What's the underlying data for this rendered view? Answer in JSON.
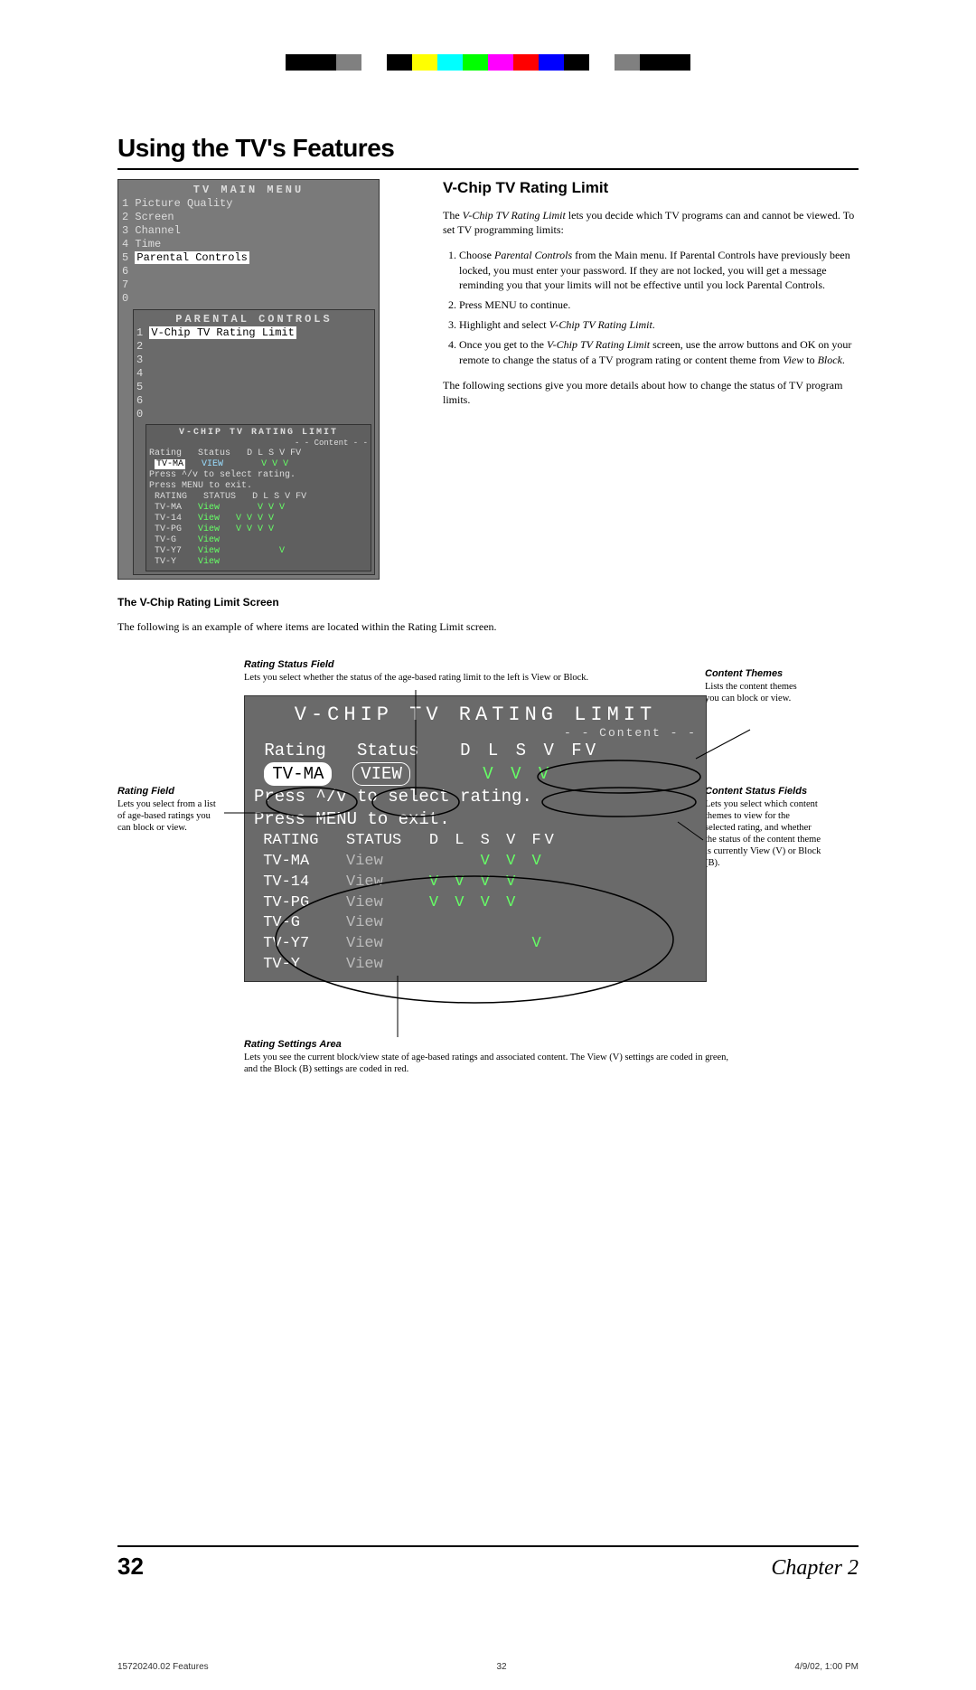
{
  "crop_marks": {
    "colors": [
      "#000000",
      "#000000",
      "#808080",
      "#ffffff",
      "#000000",
      "#ffff00",
      "#00ffff",
      "#00ff00",
      "#ff00ff",
      "#ff0000",
      "#0000ff",
      "#000000",
      "#ffffff",
      "#808080",
      "#000000",
      "#000000"
    ]
  },
  "chapter_title": "Using the TV's Features",
  "section_title": "V-Chip TV Rating Limit",
  "intro_para": "The V-Chip TV Rating Limit lets you decide which TV programs can and cannot be viewed. To set TV programming limits:",
  "steps": [
    "Choose Parental Controls from the Main menu. If Parental Controls have previously been locked, you must enter your password. If they are not locked, you will get a message reminding you that your limits will not be effective until you lock Parental Controls.",
    "Press MENU to continue.",
    "Highlight and select V-Chip TV Rating Limit.",
    "Once you get to the V-Chip TV Rating Limit screen, use the arrow buttons and OK on your remote to change the status of a TV program rating or content theme from View to Block."
  ],
  "tail_para": "The following sections give you more details about how to change the status of TV program limits.",
  "tv_main_menu": {
    "title": "TV MAIN MENU",
    "items": [
      {
        "n": "1",
        "label": "Picture Quality"
      },
      {
        "n": "2",
        "label": "Screen"
      },
      {
        "n": "3",
        "label": "Channel"
      },
      {
        "n": "4",
        "label": "Time"
      },
      {
        "n": "5",
        "label": "Parental Controls",
        "hl": true
      },
      {
        "n": "6",
        "label": ""
      },
      {
        "n": "7",
        "label": ""
      },
      {
        "n": "0",
        "label": ""
      }
    ]
  },
  "parental_controls": {
    "title": "PARENTAL CONTROLS",
    "rows": [
      {
        "n": "1",
        "label": "V-Chip TV Rating Limit",
        "hl": true
      },
      {
        "n": "2",
        "label": ""
      },
      {
        "n": "3",
        "label": ""
      },
      {
        "n": "4",
        "label": ""
      },
      {
        "n": "5",
        "label": ""
      },
      {
        "n": "6",
        "label": ""
      },
      {
        "n": "0",
        "label": ""
      }
    ]
  },
  "vchip_small": {
    "title": "V-CHIP TV RATING LIMIT",
    "content_label": "- - Content - -",
    "header": {
      "rating": "Rating",
      "status": "Status",
      "cols": "D L S V FV"
    },
    "current": {
      "rating": "TV-MA",
      "status": "VIEW",
      "marks": "    V V V"
    },
    "help1": "Press ^/v to select rating.",
    "help2": "Press MENU to exit.",
    "table_header": {
      "rating": "RATING",
      "status": "STATUS",
      "cols": "D L S V FV"
    },
    "rows": [
      {
        "rating": "TV-MA",
        "status": "View",
        "marks": "    V V V"
      },
      {
        "rating": "TV-14",
        "status": "View",
        "marks": "V V V V"
      },
      {
        "rating": "TV-PG",
        "status": "View",
        "marks": "V V V V"
      },
      {
        "rating": "TV-G",
        "status": "View",
        "marks": ""
      },
      {
        "rating": "TV-Y7",
        "status": "View",
        "marks": "        V"
      },
      {
        "rating": "TV-Y",
        "status": "View",
        "marks": ""
      }
    ]
  },
  "subhead": "The V-Chip Rating Limit Screen",
  "subhead_intro": "The following is an example of where items are located within the Rating Limit screen.",
  "annot_rating_status": {
    "title": "Rating Status Field",
    "body": "Lets you select whether the status of the age-based rating limit to the left is View or Block."
  },
  "annot_content_themes": {
    "title": "Content Themes",
    "body": "Lists the content themes you can block or view."
  },
  "annot_rating_field": {
    "title": "Rating Field",
    "body": "Lets you select from a list of age-based ratings you can block or view."
  },
  "annot_content_status": {
    "title": "Content Status Fields",
    "body": "Lets you select which content themes to view for the selected rating, and whether the status of the content theme is currently View (V) or Block (B)."
  },
  "annot_settings": {
    "title": "Rating Settings Area",
    "body": "Lets you see the current block/view state of age-based ratings and associated content. The View (V) settings are coded in green, and the Block (B) settings are coded in red."
  },
  "bigscreen": {
    "title": "V-CHIP TV RATING LIMIT",
    "content_label": "- - Content - -",
    "h_rating": "Rating",
    "h_status": "Status",
    "h_cols": "D L S V FV",
    "cur_rating": "TV-MA",
    "cur_status": "VIEW",
    "cur_marks": "   V V V",
    "help1": "Press ^/v to select rating.",
    "help2": "Press MENU to exit.",
    "th_rating": "RATING",
    "th_status": "STATUS",
    "th_cols": "D L S V FV",
    "rows": [
      {
        "r": "TV-MA",
        "s": "View",
        "m": "    V V V"
      },
      {
        "r": "TV-14",
        "s": "View",
        "m": "V V V V"
      },
      {
        "r": "TV-PG",
        "s": "View",
        "m": "V V V V"
      },
      {
        "r": "TV-G",
        "s": "View",
        "m": ""
      },
      {
        "r": "TV-Y7",
        "s": "View",
        "m": "        V"
      },
      {
        "r": "TV-Y",
        "s": "View",
        "m": ""
      }
    ]
  },
  "footer": {
    "page": "32",
    "chapter": "Chapter 2"
  },
  "printfoot": {
    "file": "15720240.02 Features",
    "page": "32",
    "date": "4/9/02, 1:00 PM"
  }
}
